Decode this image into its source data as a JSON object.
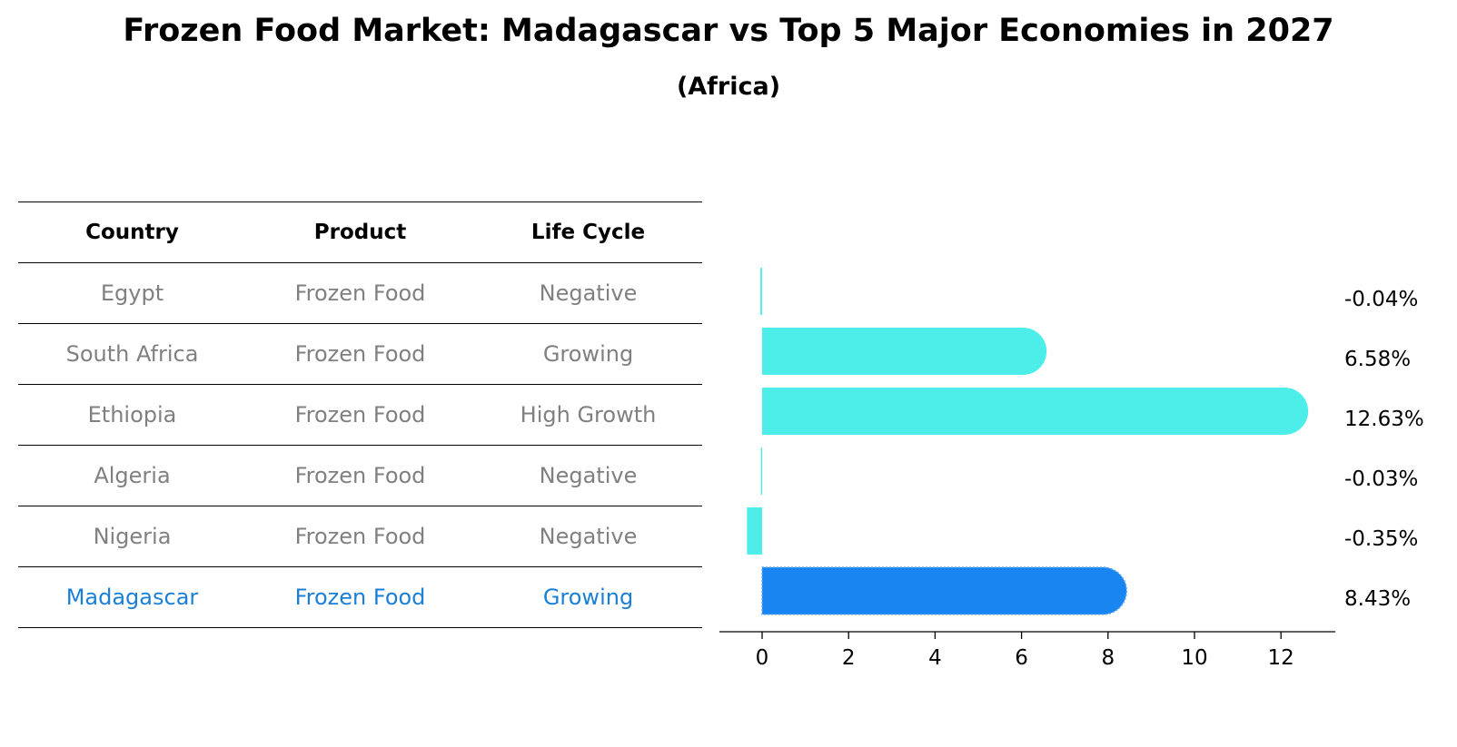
{
  "title": "Frozen Food Market: Madagascar vs Top 5 Major Economies in 2027",
  "subtitle": "(Africa)",
  "table": {
    "headers": [
      "Country",
      "Product",
      "Life Cycle"
    ],
    "rows": [
      {
        "country": "Egypt",
        "product": "Frozen Food",
        "life_cycle": "Negative"
      },
      {
        "country": "South Africa",
        "product": "Frozen Food",
        "life_cycle": "Growing"
      },
      {
        "country": "Ethiopia",
        "product": "Frozen Food",
        "life_cycle": "High Growth"
      },
      {
        "country": "Algeria",
        "product": "Frozen Food",
        "life_cycle": "Negative"
      },
      {
        "country": "Nigeria",
        "product": "Frozen Food",
        "life_cycle": "Negative"
      },
      {
        "country": "Madagascar",
        "product": "Frozen Food",
        "life_cycle": "Growing"
      }
    ]
  },
  "chart_data": {
    "type": "bar",
    "orientation": "horizontal",
    "categories": [
      "Egypt",
      "South Africa",
      "Ethiopia",
      "Algeria",
      "Nigeria",
      "Madagascar"
    ],
    "values": [
      -0.04,
      6.58,
      12.63,
      -0.03,
      -0.35,
      8.43
    ],
    "value_labels": [
      "-0.04%",
      "6.58%",
      "12.63%",
      "-0.03%",
      "-0.35%",
      "8.43%"
    ],
    "xlim": [
      -1,
      13.3
    ],
    "xticks": [
      0,
      2,
      4,
      6,
      8,
      10,
      12
    ],
    "highlight": "Madagascar",
    "colors": {
      "bar": "#4deeea",
      "highlight": "#1985f1",
      "highlight_text": "#1a7fd6",
      "muted_text": "#808080"
    },
    "grid": false
  }
}
